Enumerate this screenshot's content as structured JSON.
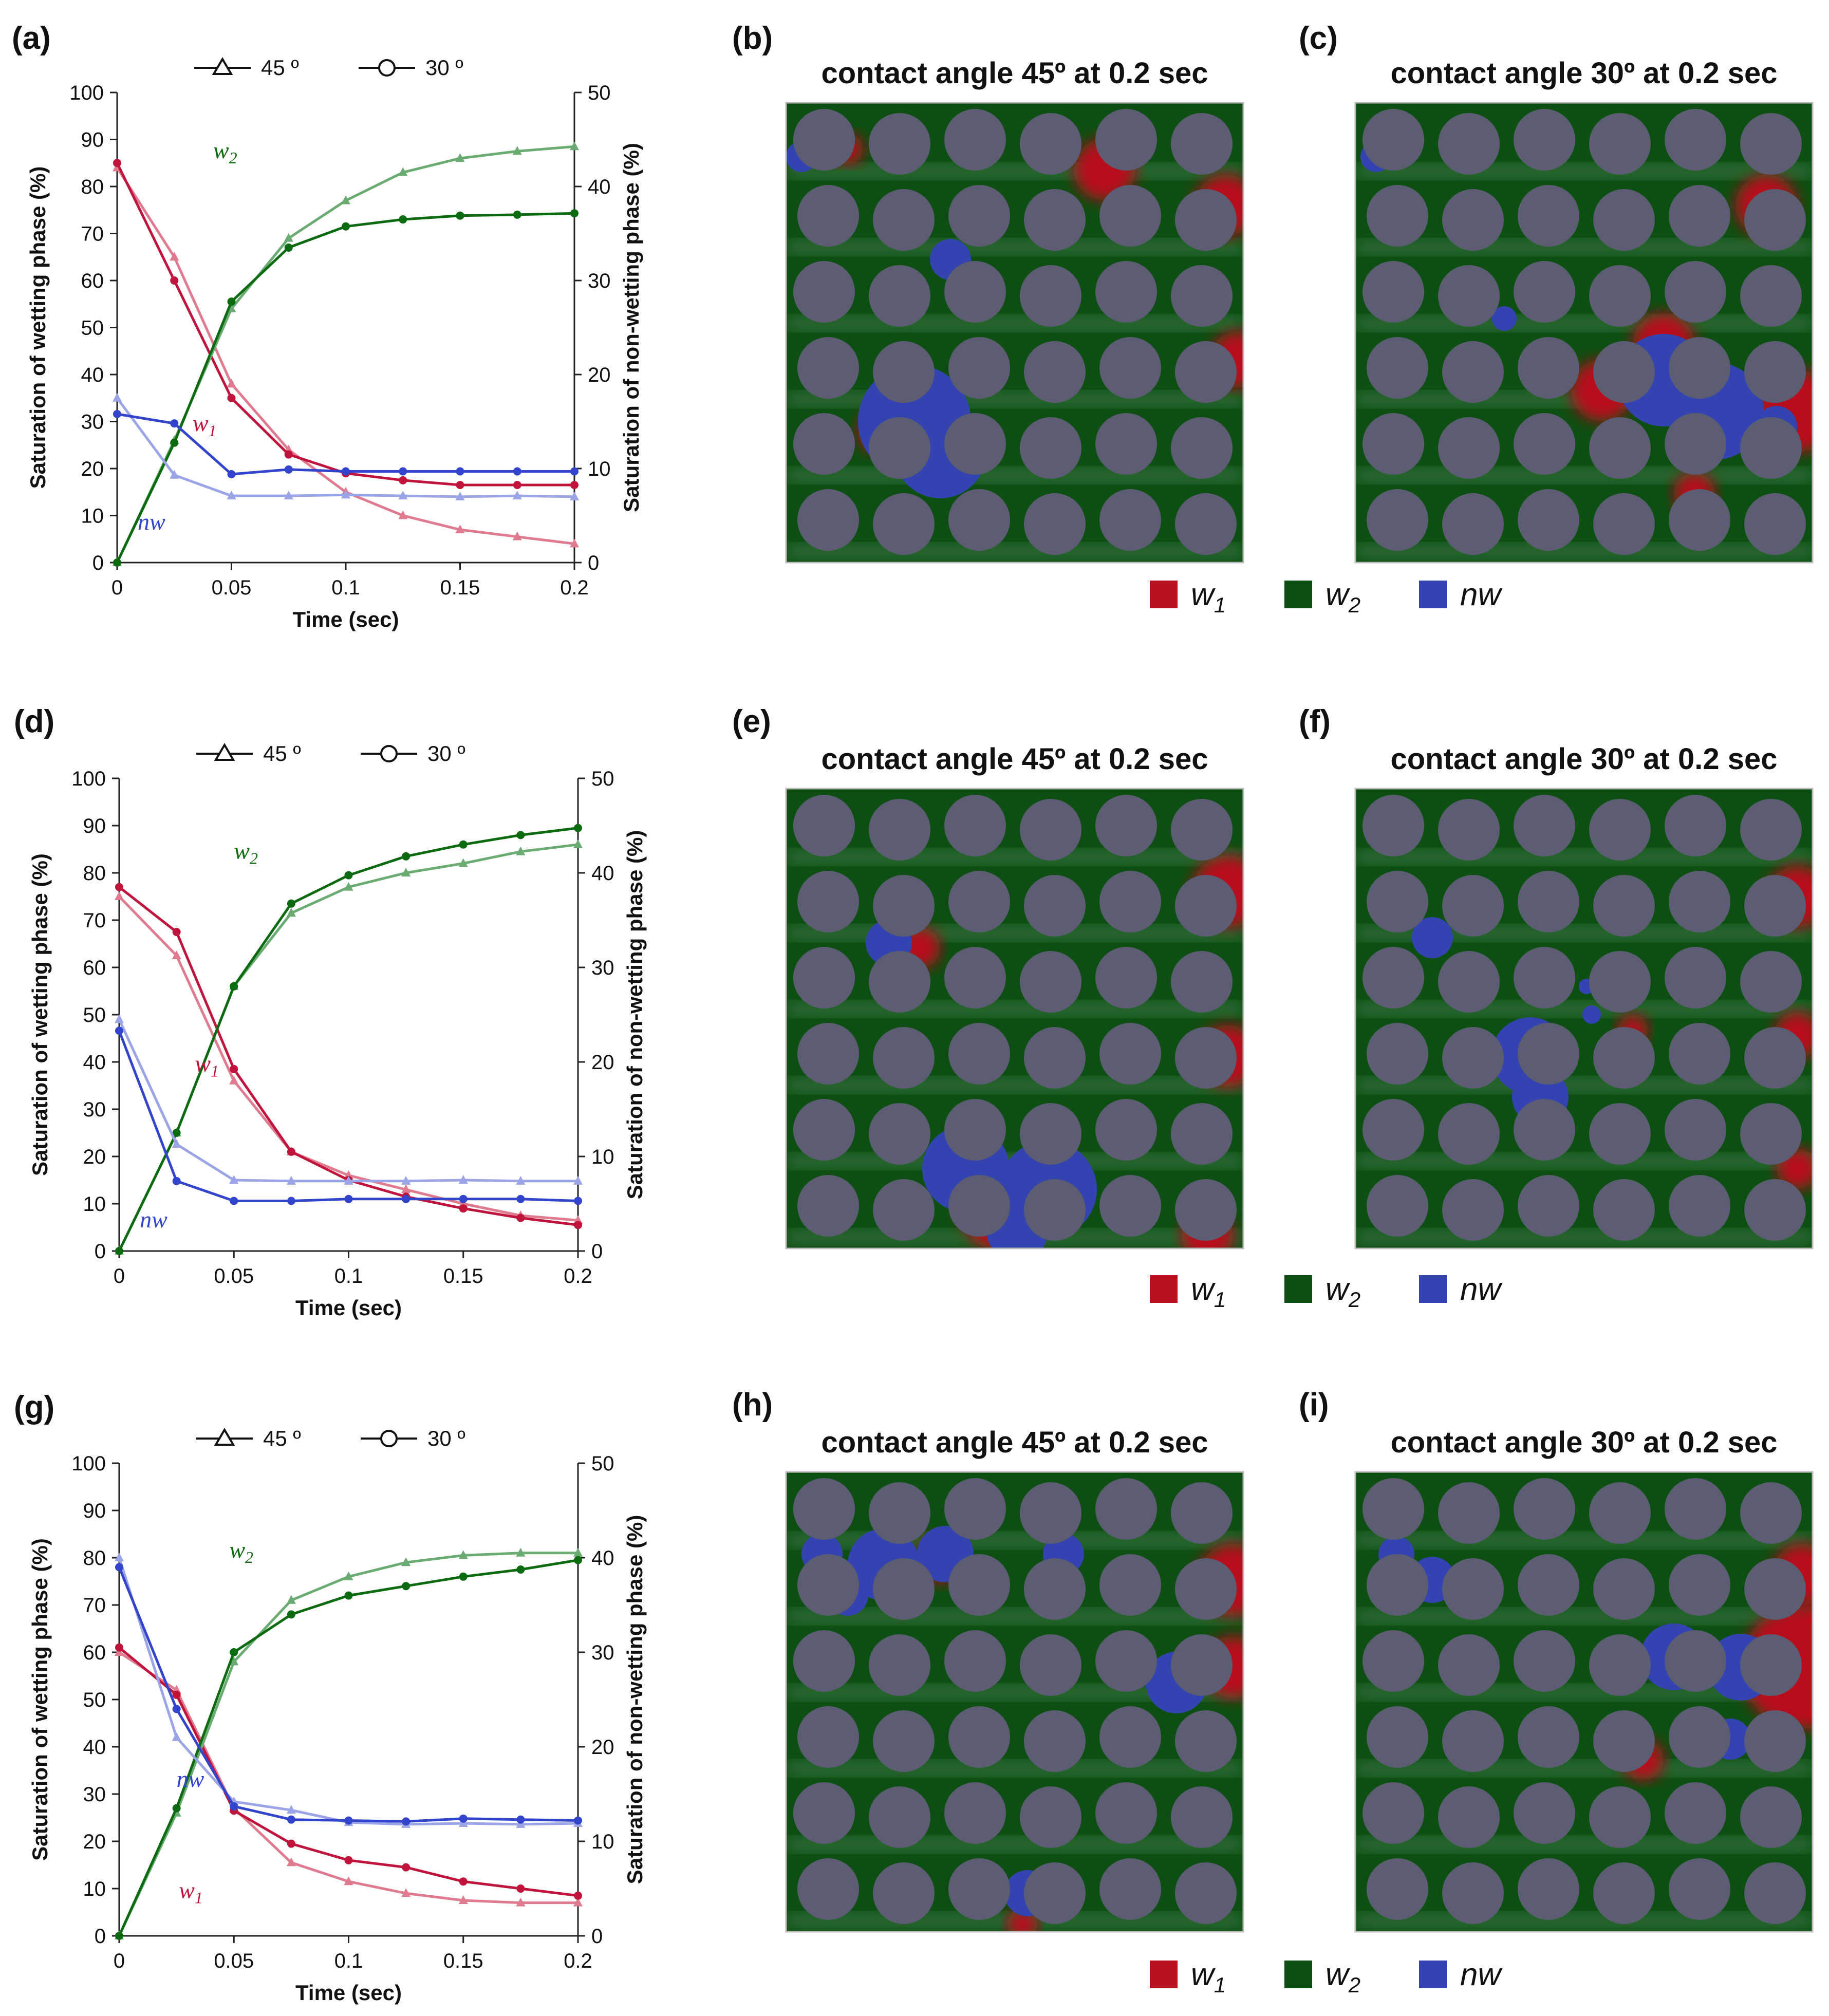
{
  "colors": {
    "w1_strong": "#c0143c",
    "w1_light": "#e07a8e",
    "w2_strong": "#0c6a10",
    "w2_light": "#6aab72",
    "nw_strong": "#3344cc",
    "nw_light": "#9aa4e6",
    "field_green": "#0d4f12",
    "field_red": "#b8101e",
    "field_blue": "#3344b0",
    "grain": "#5c5c72"
  },
  "legend": {
    "angle45": "45 º",
    "angle30": "30 º"
  },
  "colormap": {
    "w1": "w",
    "w1_sub": "1",
    "w2": "w",
    "w2_sub": "2",
    "nw": "nw"
  },
  "chart_data": [
    {
      "type": "line",
      "panel": "(a)",
      "xlabel": "Time (sec)",
      "ylabel": "Saturation of wetting phase (%)",
      "y2label": "Saturation of non-wetting phase (%)",
      "x": [
        0,
        0.025,
        0.05,
        0.075,
        0.1,
        0.125,
        0.15,
        0.175,
        0.2
      ],
      "xticks": [
        "0",
        "0.05",
        "0.1",
        "0.15",
        "0.2"
      ],
      "yticks": [
        "0",
        "10",
        "20",
        "30",
        "40",
        "50",
        "60",
        "70",
        "80",
        "90",
        "100"
      ],
      "y2ticks": [
        "0",
        "10",
        "20",
        "30",
        "40",
        "50"
      ],
      "xlim": [
        0,
        0.2
      ],
      "ylim": [
        0,
        100
      ],
      "y2lim": [
        0,
        50
      ],
      "series": [
        {
          "name": "w1 45º",
          "values": [
            84,
            65,
            38,
            24,
            15,
            10,
            7,
            5.5,
            4
          ]
        },
        {
          "name": "w1 30º",
          "values": [
            85,
            60,
            35,
            23,
            19,
            17.5,
            16.5,
            16.5,
            16.5
          ]
        },
        {
          "name": "w2 45º",
          "values": [
            0,
            26,
            54,
            69,
            77,
            83,
            86,
            87.5,
            88.5
          ]
        },
        {
          "name": "w2 30º",
          "values": [
            0,
            25.5,
            55.5,
            67,
            71.5,
            73,
            73.8,
            74,
            74.3
          ]
        },
        {
          "name": "nw 45º",
          "axis": "right",
          "values": [
            17.5,
            9.3,
            7.1,
            7.1,
            7.2,
            7.1,
            7.0,
            7.1,
            7.0
          ]
        },
        {
          "name": "nw 30º",
          "axis": "right",
          "values": [
            15.8,
            14.8,
            9.4,
            9.9,
            9.7,
            9.7,
            9.7,
            9.7,
            9.7
          ]
        }
      ],
      "labels": {
        "w1": "w",
        "w2": "w",
        "nw": "nw"
      }
    },
    {
      "type": "line",
      "panel": "(d)",
      "xlabel": "Time (sec)",
      "ylabel": "Saturation of wetting phase (%)",
      "y2label": "Saturation of non-wetting phase (%)",
      "x": [
        0,
        0.025,
        0.05,
        0.075,
        0.1,
        0.125,
        0.15,
        0.175,
        0.2
      ],
      "xticks": [
        "0",
        "0.05",
        "0.1",
        "0.15",
        "0.2"
      ],
      "yticks": [
        "0",
        "10",
        "20",
        "30",
        "40",
        "50",
        "60",
        "70",
        "80",
        "90",
        "100"
      ],
      "y2ticks": [
        "0",
        "10",
        "20",
        "30",
        "40",
        "50"
      ],
      "xlim": [
        0,
        0.2
      ],
      "ylim": [
        0,
        100
      ],
      "y2lim": [
        0,
        50
      ],
      "series": [
        {
          "name": "w1 45º",
          "values": [
            75,
            62.5,
            36,
            21,
            16,
            13,
            10,
            7.5,
            6.5
          ]
        },
        {
          "name": "w1 30º",
          "values": [
            77,
            67.5,
            38.5,
            21,
            15,
            11.5,
            9,
            7,
            5.5
          ]
        },
        {
          "name": "w2 45º",
          "values": [
            0,
            25,
            56,
            71.5,
            77,
            80,
            82,
            84.5,
            86
          ]
        },
        {
          "name": "w2 30º",
          "values": [
            0,
            25,
            56,
            73.5,
            79.5,
            83.5,
            86,
            88,
            89.5
          ]
        },
        {
          "name": "nw 45º",
          "axis": "right",
          "values": [
            24.5,
            11.3,
            7.5,
            7.4,
            7.4,
            7.4,
            7.5,
            7.4,
            7.4
          ]
        },
        {
          "name": "nw 30º",
          "axis": "right",
          "values": [
            23.3,
            7.4,
            5.3,
            5.3,
            5.5,
            5.5,
            5.5,
            5.5,
            5.3
          ]
        }
      ],
      "labels": {
        "w1": "w",
        "w2": "w",
        "nw": "nw"
      }
    },
    {
      "type": "line",
      "panel": "(g)",
      "xlabel": "Time (sec)",
      "ylabel": "Saturation of wetting phase (%)",
      "y2label": "Saturation of non-wetting phase (%)",
      "x": [
        0,
        0.025,
        0.05,
        0.075,
        0.1,
        0.125,
        0.15,
        0.175,
        0.2
      ],
      "xticks": [
        "0",
        "0.05",
        "0.1",
        "0.15",
        "0.2"
      ],
      "yticks": [
        "0",
        "10",
        "20",
        "30",
        "40",
        "50",
        "60",
        "70",
        "80",
        "90",
        "100"
      ],
      "y2ticks": [
        "0",
        "10",
        "20",
        "30",
        "40",
        "50"
      ],
      "xlim": [
        0,
        0.2
      ],
      "ylim": [
        0,
        100
      ],
      "y2lim": [
        0,
        50
      ],
      "series": [
        {
          "name": "w1 45º",
          "values": [
            60,
            52,
            27,
            15.5,
            11.5,
            9,
            7.5,
            7,
            7
          ]
        },
        {
          "name": "w1 30º",
          "values": [
            61,
            51,
            26.5,
            19.5,
            16,
            14.5,
            11.5,
            10,
            8.5
          ]
        },
        {
          "name": "w2 45º",
          "values": [
            0,
            26,
            58,
            71,
            76,
            79,
            80.5,
            81,
            81
          ]
        },
        {
          "name": "w2 30º",
          "values": [
            0,
            27,
            60,
            68,
            72,
            74,
            76,
            77.5,
            79.5
          ]
        },
        {
          "name": "nw 45º",
          "axis": "right",
          "values": [
            40,
            21,
            14.2,
            13.3,
            12.0,
            11.8,
            11.9,
            11.8,
            11.9
          ]
        },
        {
          "name": "nw 30º",
          "axis": "right",
          "values": [
            39,
            24,
            13.7,
            12.3,
            12.2,
            12.1,
            12.4,
            12.3,
            12.2
          ]
        }
      ],
      "labels": {
        "w1": "w",
        "w2": "w",
        "nw": "nw"
      }
    }
  ],
  "simulations": [
    {
      "panel": "(b)",
      "title": "contact angle 45º at 0.2 sec"
    },
    {
      "panel": "(c)",
      "title": "contact angle 30º at 0.2 sec"
    },
    {
      "panel": "(e)",
      "title": "contact angle 45º at 0.2 sec"
    },
    {
      "panel": "(f)",
      "title": "contact angle 30º at 0.2 sec"
    },
    {
      "panel": "(h)",
      "title": "contact angle 45º at 0.2 sec"
    },
    {
      "panel": "(i)",
      "title": "contact angle 30º at 0.2 sec"
    }
  ]
}
